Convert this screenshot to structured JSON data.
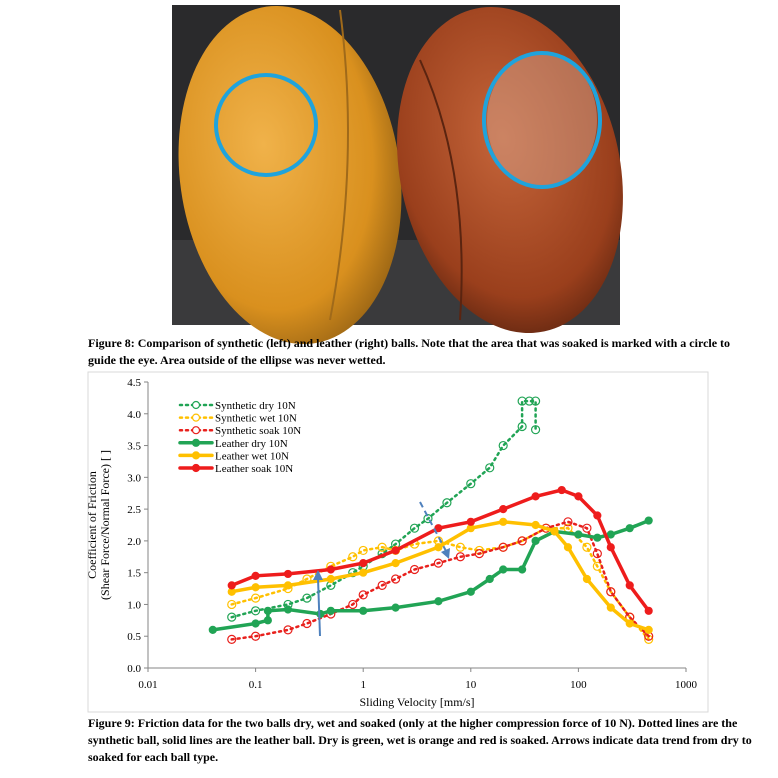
{
  "figure_8_caption": "Figure 8: Comparison of synthetic (left) and leather (right) balls.  Note that the area that was soaked is marked with a circle to guide the eye.  Area outside of the ellipse was never wetted.",
  "chart_data": {
    "type": "line",
    "xlabel": "Sliding Velocity [mm/s]",
    "ylabel": [
      "Coefficient of Friction",
      "(Shear Force/Normal Force) [ ]"
    ],
    "log_x": true,
    "xlim": [
      0.01,
      1000
    ],
    "xticks": [
      0.01,
      0.1,
      1,
      10,
      100,
      1000
    ],
    "ylim": [
      0,
      4.5
    ],
    "yticks": [
      {
        "value": 0,
        "label": "0.0"
      },
      {
        "value": 0.5,
        "label": "0.5"
      },
      {
        "value": 1,
        "label": "1.0"
      },
      {
        "value": 1.5,
        "label": "1.5"
      },
      {
        "value": 2,
        "label": "2.0"
      },
      {
        "value": 2.5,
        "label": "2.5"
      },
      {
        "value": 3,
        "label": "3.0"
      },
      {
        "value": 3.5,
        "label": "3.5"
      },
      {
        "value": 4,
        "label": "4.0"
      },
      {
        "value": 4.5,
        "label": "4.5"
      }
    ],
    "legend": "upper left",
    "series": [
      {
        "name": "Synthetic dry 10N",
        "color": "#21a455",
        "line_style": "dotted",
        "marker_fill": false,
        "x": [
          0.06,
          0.1,
          0.2,
          0.3,
          0.5,
          0.8,
          1,
          1.5,
          2,
          3,
          4,
          6,
          10,
          15,
          20,
          30,
          30,
          35,
          40,
          40
        ],
        "values": [
          0.8,
          0.9,
          1.0,
          1.1,
          1.3,
          1.5,
          1.6,
          1.8,
          1.95,
          2.2,
          2.35,
          2.6,
          2.9,
          3.15,
          3.5,
          3.8,
          4.2,
          4.2,
          4.2,
          3.75
        ]
      },
      {
        "name": "Synthetic wet 10N",
        "color": "#ffc000",
        "line_style": "dotted",
        "marker_fill": false,
        "x": [
          0.06,
          0.1,
          0.2,
          0.3,
          0.5,
          0.8,
          1,
          1.5,
          2,
          3,
          5,
          8,
          12,
          20,
          30,
          50,
          80,
          120,
          150,
          200,
          300,
          450
        ],
        "values": [
          1.0,
          1.1,
          1.25,
          1.4,
          1.6,
          1.75,
          1.85,
          1.9,
          1.85,
          1.95,
          2.0,
          1.9,
          1.85,
          1.9,
          2.0,
          2.2,
          2.2,
          1.9,
          1.6,
          1.2,
          0.8,
          0.45
        ]
      },
      {
        "name": "Synthetic soak 10N",
        "color": "#e8201c",
        "line_style": "dotted",
        "marker_fill": false,
        "x": [
          0.06,
          0.1,
          0.2,
          0.3,
          0.5,
          0.8,
          1,
          1.5,
          2,
          3,
          5,
          8,
          12,
          20,
          30,
          50,
          80,
          120,
          150,
          200,
          300,
          450
        ],
        "values": [
          0.45,
          0.5,
          0.6,
          0.7,
          0.85,
          1.0,
          1.15,
          1.3,
          1.4,
          1.55,
          1.65,
          1.75,
          1.8,
          1.9,
          2.0,
          2.2,
          2.3,
          2.2,
          1.8,
          1.2,
          0.8,
          0.5
        ]
      },
      {
        "name": "Leather dry 10N",
        "color": "#21a455",
        "line_style": "solid",
        "marker_fill": true,
        "x": [
          0.04,
          0.1,
          0.13,
          0.13,
          0.2,
          0.4,
          0.5,
          1,
          2,
          5,
          10,
          15,
          20,
          30,
          40,
          60,
          100,
          150,
          200,
          300,
          450
        ],
        "values": [
          0.6,
          0.7,
          0.75,
          0.9,
          0.92,
          0.85,
          0.9,
          0.9,
          0.95,
          1.05,
          1.2,
          1.4,
          1.55,
          1.55,
          2.0,
          2.15,
          2.1,
          2.05,
          2.1,
          2.2,
          2.32
        ]
      },
      {
        "name": "Leather wet 10N",
        "color": "#ffc000",
        "line_style": "solid",
        "marker_fill": true,
        "x": [
          0.06,
          0.1,
          0.2,
          0.5,
          1,
          2,
          5,
          10,
          20,
          40,
          60,
          80,
          120,
          200,
          300,
          450
        ],
        "values": [
          1.2,
          1.27,
          1.3,
          1.4,
          1.5,
          1.65,
          1.9,
          2.2,
          2.3,
          2.25,
          2.15,
          1.9,
          1.4,
          0.95,
          0.7,
          0.6
        ]
      },
      {
        "name": "Leather soak 10N",
        "color": "#ee1c1c",
        "line_style": "solid",
        "marker_fill": true,
        "x": [
          0.06,
          0.1,
          0.2,
          0.5,
          1,
          2,
          5,
          10,
          20,
          40,
          70,
          100,
          150,
          200,
          300,
          450
        ],
        "values": [
          1.3,
          1.45,
          1.48,
          1.55,
          1.65,
          1.85,
          2.2,
          2.3,
          2.5,
          2.7,
          2.8,
          2.7,
          2.4,
          1.9,
          1.3,
          0.9
        ]
      }
    ]
  },
  "figure_9_caption": "Figure 9: Friction data for the two balls dry, wet and soaked (only at the higher compression force of 10 N).  Dotted lines are the synthetic ball, solid lines are the leather ball.  Dry is green, wet is orange and red is soaked.  Arrows indicate data trend from dry to soaked for each ball type."
}
